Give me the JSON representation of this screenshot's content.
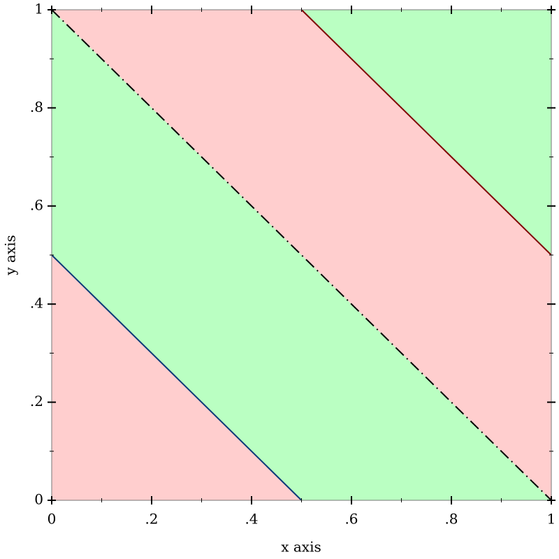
{
  "chart_data": {
    "type": "contour-intervals",
    "xlabel": "x axis",
    "ylabel": "y axis",
    "xlim": [
      0,
      1
    ],
    "ylim": [
      0,
      1
    ],
    "xticks": [
      0,
      {
        "value": 0.2,
        "label": ".2"
      },
      {
        "value": 0.4,
        "label": ".4"
      },
      {
        "value": 0.6,
        "label": ".6"
      },
      {
        "value": 0.8,
        "label": ".8"
      },
      1
    ],
    "yticks": [
      0,
      {
        "value": 0.2,
        "label": ".2"
      },
      {
        "value": 0.4,
        "label": ".4"
      },
      {
        "value": 0.6,
        "label": ".6"
      },
      {
        "value": 0.8,
        "label": ".8"
      },
      1
    ],
    "xminorticks": [
      0.1,
      0.3,
      0.5,
      0.7,
      0.9
    ],
    "yminorticks": [
      0.1,
      0.3,
      0.5,
      0.7,
      0.9
    ],
    "bands": [
      {
        "color": "#ffcece",
        "x": [
          0,
          0.5,
          0
        ],
        "y": [
          0,
          0,
          0.5
        ]
      },
      {
        "color": "#baffc2",
        "x": [
          0.5,
          1,
          0,
          0
        ],
        "y": [
          0,
          0,
          1,
          0.5
        ]
      },
      {
        "color": "#ffcece",
        "x": [
          1,
          1,
          0.5,
          0
        ],
        "y": [
          0,
          0.5,
          1,
          1
        ]
      },
      {
        "color": "#baffc2",
        "x": [
          1,
          1,
          0.5
        ],
        "y": [
          0.5,
          1,
          1
        ]
      }
    ],
    "contours": [
      {
        "color": "#0a3a78",
        "style": "solid",
        "x": [
          0,
          0.5
        ],
        "y": [
          0.5,
          0
        ]
      },
      {
        "color": "#000000",
        "style": "dashdot",
        "x": [
          0,
          1
        ],
        "y": [
          1,
          0
        ]
      },
      {
        "color": "#800000",
        "style": "solid",
        "x": [
          0.5,
          1
        ],
        "y": [
          1,
          0.5
        ]
      }
    ]
  }
}
